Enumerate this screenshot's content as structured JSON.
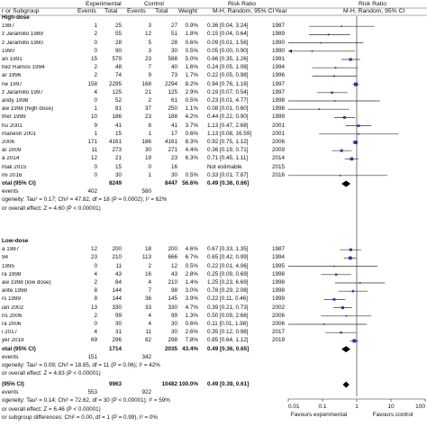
{
  "header": {
    "group_col": "r or Subgroup",
    "experimental": "Experimental",
    "control": "Control",
    "events": "Events",
    "total": "Total",
    "weight": "Weight",
    "risk_ratio": "Risk Ratio",
    "method": "M-H, Random, 95% CI",
    "year": "Year"
  },
  "subgroups": [
    {
      "title": "High-dose",
      "rows": [
        {
          "study": "1987",
          "ee": "1",
          "et": "25",
          "ce": "3",
          "ct": "27",
          "w": "0.9%",
          "ci": "0.36 [0.04, 3.24]",
          "yr": "1987"
        },
        {
          "study": "z Jaramillo 1989",
          "ee": "2",
          "et": "55",
          "ce": "12",
          "ct": "51",
          "w": "1.8%",
          "ci": "0.15 [0.04, 0.64]",
          "yr": "1989"
        },
        {
          "study": "z Jaramillo 1990",
          "ee": "0",
          "et": "28",
          "ce": "5",
          "ct": "28",
          "w": "0.6%",
          "ci": "0.09 [0.01, 1.56]",
          "yr": "1990"
        },
        {
          "study": "1990",
          "ee": "0",
          "et": "90",
          "ce": "3",
          "ct": "30",
          "w": "0.5%",
          "ci": "0.05 [0.00, 0.90]",
          "yr": "1990"
        },
        {
          "study": "an 1991",
          "ee": "15",
          "et": "579",
          "ce": "23",
          "ct": "588",
          "w": "5.0%",
          "ci": "0.66 [0.35, 1.26]",
          "yr": "1991"
        },
        {
          "study": "hez Ramos 1994",
          "ee": "2",
          "et": "48",
          "ce": "7",
          "ct": "40",
          "w": "1.6%",
          "ci": "0.24 [0.05, 1.08]",
          "yr": "1994"
        },
        {
          "study": "ar 1996",
          "ee": "2",
          "et": "74",
          "ce": "9",
          "ct": "73",
          "w": "1.7%",
          "ci": "0.22 [0.05, 0.98]",
          "yr": "1996"
        },
        {
          "study": "ne 1997",
          "ee": "158",
          "et": "2295",
          "ce": "168",
          "ct": "2294",
          "w": "8.2%",
          "ci": "0.94 [0.76, 1.16]",
          "yr": "1997"
        },
        {
          "study": "z Jaramillo 1997",
          "ee": "4",
          "et": "125",
          "ce": "21",
          "ct": "125",
          "w": "2.9%",
          "ci": "0.19 [0.07, 0.54]",
          "yr": "1997"
        },
        {
          "study": "andy 1998",
          "ee": "0",
          "et": "52",
          "ce": "2",
          "ct": "61",
          "w": "0.5%",
          "ci": "0.23 [0.01, 4.77]",
          "yr": "1998"
        },
        {
          "study": "aw 1998 (high dose)",
          "ee": "1",
          "et": "81",
          "ce": "37",
          "ct": "250",
          "w": "1.1%",
          "ci": "0.08 [0.01, 0.60]",
          "yr": "1998"
        },
        {
          "study": "ther 1999",
          "ee": "10",
          "et": "186",
          "ce": "23",
          "ct": "188",
          "w": "4.2%",
          "ci": "0.44 [0.22, 0.90]",
          "yr": "1999"
        },
        {
          "study": "hu 2001",
          "ee": "9",
          "et": "41",
          "ce": "8",
          "ct": "41",
          "w": "3.7%",
          "ci": "1.13 [0.47, 2.68]",
          "yr": "2001"
        },
        {
          "study": "manesh 2001",
          "ee": "1",
          "et": "15",
          "ce": "1",
          "ct": "17",
          "w": "0.6%",
          "ci": "1.13 [0.08, 16.59]",
          "yr": "2001"
        },
        {
          "study": "2006",
          "ee": "171",
          "et": "4161",
          "ce": "186",
          "ct": "4161",
          "w": "8.3%",
          "ci": "0.92 [0.75, 1.12]",
          "yr": "2006"
        },
        {
          "study": "ar 2009",
          "ee": "11",
          "et": "273",
          "ce": "30",
          "ct": "271",
          "w": "4.4%",
          "ci": "0.36 [0.19, 0.71]",
          "yr": "2009"
        },
        {
          "study": "a 2014",
          "ee": "12",
          "et": "21",
          "ce": "19",
          "ct": "23",
          "w": "6.3%",
          "ci": "0.71 [0.45, 1.11]",
          "yr": "2014"
        },
        {
          "study": "mali 2015",
          "ee": "0",
          "et": "15",
          "ce": "0",
          "ct": "16",
          "w": "",
          "ci": "Not estimable",
          "yr": "2015"
        },
        {
          "study": "mi 2016",
          "ee": "0",
          "et": "30",
          "ce": "1",
          "ct": "30",
          "w": "0.5%",
          "ci": "0.33 [0.01, 7.87]",
          "yr": "2016"
        }
      ],
      "total_label": "otal (95% CI)",
      "total": {
        "et": "8249",
        "ct": "8447",
        "w": "56.6%",
        "ci": "0.49 [0.36, 0.66]"
      },
      "events_label": "events",
      "events_ee": "402",
      "events_ce": "580",
      "heterogeneity": "ogeneity: Tau² = 0.17; Chi² = 47.82, df = 18 (P = 0.0002); I² = 62%",
      "overall": "or overall effect: Z = 4.60 (P < 0.00001)"
    },
    {
      "title": "Low-dose",
      "rows": [
        {
          "study": "a 1987",
          "ee": "12",
          "et": "200",
          "ce": "18",
          "ct": "200",
          "w": "4.6%",
          "ci": "0.67 [0.33, 1.35]",
          "yr": "1987"
        },
        {
          "study": "94",
          "ee": "23",
          "et": "210",
          "ce": "113",
          "ct": "666",
          "w": "6.7%",
          "ci": "0.65 [0.42, 0.99]",
          "yr": "1994"
        },
        {
          "study": "1995",
          "ee": "0",
          "et": "11",
          "ce": "2",
          "ct": "12",
          "w": "0.5%",
          "ci": "0.22 [0.01, 4.06]",
          "yr": "1995"
        },
        {
          "study": "ra 1998",
          "ee": "4",
          "et": "43",
          "ce": "16",
          "ct": "43",
          "w": "2.8%",
          "ci": "0.25 [0.09, 0.69]",
          "yr": "1998"
        },
        {
          "study": "aw 1998 (low dose)",
          "ee": "2",
          "et": "84",
          "ce": "4",
          "ct": "210",
          "w": "1.4%",
          "ci": "1.25 [0.23, 6.69]",
          "yr": "1998"
        },
        {
          "study": "ante 1998",
          "ee": "8",
          "et": "144",
          "ce": "7",
          "ct": "98",
          "w": "3.0%",
          "ci": "0.78 [0.29, 2.08]",
          "yr": "1998"
        },
        {
          "study": "rs 1999",
          "ee": "8",
          "et": "144",
          "ce": "36",
          "ct": "145",
          "w": "3.9%",
          "ci": "0.22 [0.11, 0.46]",
          "yr": "1999"
        },
        {
          "study": "ian 2002",
          "ee": "13",
          "et": "330",
          "ce": "33",
          "ct": "330",
          "w": "4.7%",
          "ci": "0.39 [0.21, 0.73]",
          "yr": "2002"
        },
        {
          "study": "ris 2006",
          "ee": "2",
          "et": "99",
          "ce": "4",
          "ct": "99",
          "w": "1.3%",
          "ci": "0.50 [0.09, 2.66]",
          "yr": "2006"
        },
        {
          "study": "ra 2006",
          "ee": "0",
          "et": "30",
          "ce": "4",
          "ct": "30",
          "w": "0.6%",
          "ci": "0.11 [0.01, 1.98]",
          "yr": "2006"
        },
        {
          "study": "i 2017",
          "ee": "4",
          "et": "31",
          "ce": "11",
          "ct": "30",
          "w": "2.6%",
          "ci": "0.35 [0.12, 0.98]",
          "yr": "2017"
        },
        {
          "study": "yer 2019",
          "ee": "69",
          "et": "296",
          "ce": "82",
          "ct": "298",
          "w": "7.8%",
          "ci": "0.85 [0.64, 1.12]",
          "yr": "2019"
        }
      ],
      "total_label": "otal (95% CI)",
      "total": {
        "et": "1714",
        "ct": "2035",
        "w": "43.4%",
        "ci": "0.49 [0.36, 0.65]"
      },
      "events_label": "events",
      "events_ee": "151",
      "events_ce": "342",
      "heterogeneity": "ogeneity: Tau² = 0.09; Chi² = 18.85, df = 11 (P = 0.06); I² = 42%",
      "overall": "or overall effect: Z = 4.83 (P < 0.00001)"
    }
  ],
  "overall": {
    "label": "(95% CI)",
    "et": "9963",
    "ct": "10482",
    "w": "100.0%",
    "ci": "0.49 [0.39, 0.61]",
    "events_label": "events",
    "events_ee": "553",
    "events_ce": "922",
    "heterogeneity": "ogeneity: Tau² = 0.14; Chi² = 72.62, df = 30 (P < 0.00001); I² = 59%",
    "overall_effect": "or overall effect: Z = 6.46 (P < 0.00001)",
    "subgroup_diff": "or subgroup differences: Chi² = 0.00, df = 1 (P = 0.99), I² = 0%"
  },
  "axis": {
    "ticks": [
      "0.01",
      "0.1",
      "1",
      "10",
      "100"
    ],
    "favours_left": "Favours experimental",
    "favours_right": "Favours control"
  },
  "chart_data": {
    "type": "forest",
    "scale": "log",
    "xlim": [
      0.01,
      100
    ],
    "subgroup_points": [
      [
        {
          "rr": 0.36,
          "lo": 0.04,
          "hi": 3.24,
          "w": 0.9
        },
        {
          "rr": 0.15,
          "lo": 0.04,
          "hi": 0.64,
          "w": 1.8
        },
        {
          "rr": 0.09,
          "lo": 0.01,
          "hi": 1.56,
          "w": 0.6
        },
        {
          "rr": 0.05,
          "lo": 0.003,
          "hi": 0.9,
          "w": 0.5
        },
        {
          "rr": 0.66,
          "lo": 0.35,
          "hi": 1.26,
          "w": 5.0
        },
        {
          "rr": 0.24,
          "lo": 0.05,
          "hi": 1.08,
          "w": 1.6
        },
        {
          "rr": 0.22,
          "lo": 0.05,
          "hi": 0.98,
          "w": 1.7
        },
        {
          "rr": 0.94,
          "lo": 0.76,
          "hi": 1.16,
          "w": 8.2
        },
        {
          "rr": 0.19,
          "lo": 0.07,
          "hi": 0.54,
          "w": 2.9
        },
        {
          "rr": 0.23,
          "lo": 0.01,
          "hi": 4.77,
          "w": 0.5
        },
        {
          "rr": 0.08,
          "lo": 0.01,
          "hi": 0.6,
          "w": 1.1
        },
        {
          "rr": 0.44,
          "lo": 0.22,
          "hi": 0.9,
          "w": 4.2
        },
        {
          "rr": 1.13,
          "lo": 0.47,
          "hi": 2.68,
          "w": 3.7
        },
        {
          "rr": 1.13,
          "lo": 0.08,
          "hi": 16.59,
          "w": 0.6
        },
        {
          "rr": 0.92,
          "lo": 0.75,
          "hi": 1.12,
          "w": 8.3
        },
        {
          "rr": 0.36,
          "lo": 0.19,
          "hi": 0.71,
          "w": 4.4
        },
        {
          "rr": 0.71,
          "lo": 0.45,
          "hi": 1.11,
          "w": 6.3
        },
        null,
        {
          "rr": 0.33,
          "lo": 0.01,
          "hi": 7.87,
          "w": 0.5
        }
      ],
      [
        {
          "rr": 0.67,
          "lo": 0.33,
          "hi": 1.35,
          "w": 4.6
        },
        {
          "rr": 0.65,
          "lo": 0.42,
          "hi": 0.99,
          "w": 6.7
        },
        {
          "rr": 0.22,
          "lo": 0.01,
          "hi": 4.06,
          "w": 0.5
        },
        {
          "rr": 0.25,
          "lo": 0.09,
          "hi": 0.69,
          "w": 2.8
        },
        {
          "rr": 1.25,
          "lo": 0.23,
          "hi": 6.69,
          "w": 1.4
        },
        {
          "rr": 0.78,
          "lo": 0.29,
          "hi": 2.08,
          "w": 3.0
        },
        {
          "rr": 0.22,
          "lo": 0.11,
          "hi": 0.46,
          "w": 3.9
        },
        {
          "rr": 0.39,
          "lo": 0.21,
          "hi": 0.73,
          "w": 4.7
        },
        {
          "rr": 0.5,
          "lo": 0.09,
          "hi": 2.66,
          "w": 1.3
        },
        {
          "rr": 0.11,
          "lo": 0.01,
          "hi": 1.98,
          "w": 0.6
        },
        {
          "rr": 0.35,
          "lo": 0.12,
          "hi": 0.98,
          "w": 2.6
        },
        {
          "rr": 0.85,
          "lo": 0.64,
          "hi": 1.12,
          "w": 7.8
        }
      ]
    ],
    "subgroup_totals": [
      {
        "rr": 0.49,
        "lo": 0.36,
        "hi": 0.66
      },
      {
        "rr": 0.49,
        "lo": 0.36,
        "hi": 0.65
      }
    ],
    "overall_total": {
      "rr": 0.49,
      "lo": 0.39,
      "hi": 0.61
    },
    "colors": {
      "marker": "#1f3f9a",
      "line": "#333333",
      "diamond": "#000000"
    }
  }
}
